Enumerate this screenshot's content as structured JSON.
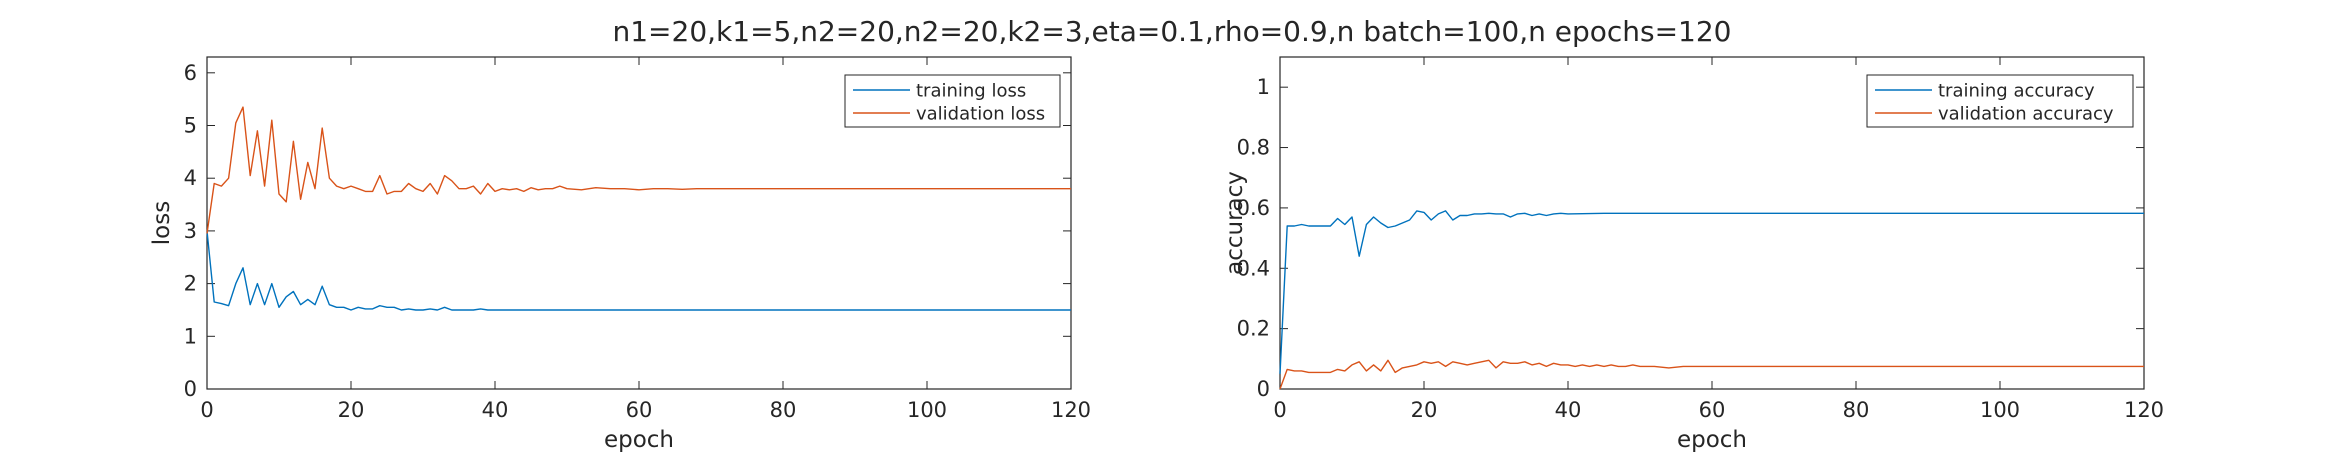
{
  "figure": {
    "suptitle": "n1=20,k1=5,n2=20,n2=20,k2=3,eta=0.1,rho=0.9,n batch=100,n epochs=120"
  },
  "colors": {
    "training": "#0072BD",
    "validation": "#D95319",
    "axes": "#262626"
  },
  "chart_data": [
    {
      "type": "line",
      "title": "",
      "xlabel": "epoch",
      "ylabel": "loss",
      "xlim": [
        0,
        120
      ],
      "ylim": [
        0,
        6.3
      ],
      "xticks": [
        0,
        20,
        40,
        60,
        80,
        100,
        120
      ],
      "yticks": [
        0,
        1,
        2,
        3,
        4,
        5,
        6
      ],
      "grid": false,
      "legend_position": "top-right",
      "series": [
        {
          "name": "training loss",
          "color": "#0072BD",
          "x": [
            0,
            1,
            2,
            3,
            4,
            5,
            6,
            7,
            8,
            9,
            10,
            11,
            12,
            13,
            14,
            15,
            16,
            17,
            18,
            19,
            20,
            21,
            22,
            23,
            24,
            25,
            26,
            27,
            28,
            29,
            30,
            31,
            32,
            33,
            34,
            35,
            36,
            37,
            38,
            39,
            40,
            45,
            50,
            60,
            70,
            80,
            90,
            100,
            110,
            120
          ],
          "y": [
            3.0,
            1.65,
            1.62,
            1.58,
            2.0,
            2.3,
            1.6,
            2.0,
            1.6,
            2.0,
            1.55,
            1.75,
            1.85,
            1.6,
            1.7,
            1.6,
            1.95,
            1.6,
            1.55,
            1.55,
            1.5,
            1.55,
            1.52,
            1.52,
            1.58,
            1.55,
            1.55,
            1.5,
            1.52,
            1.5,
            1.5,
            1.52,
            1.5,
            1.55,
            1.5,
            1.5,
            1.5,
            1.5,
            1.52,
            1.5,
            1.5,
            1.5,
            1.5,
            1.5,
            1.5,
            1.5,
            1.5,
            1.5,
            1.5,
            1.5
          ]
        },
        {
          "name": "validation loss",
          "color": "#D95319",
          "x": [
            0,
            1,
            2,
            3,
            4,
            5,
            6,
            7,
            8,
            9,
            10,
            11,
            12,
            13,
            14,
            15,
            16,
            17,
            18,
            19,
            20,
            21,
            22,
            23,
            24,
            25,
            26,
            27,
            28,
            29,
            30,
            31,
            32,
            33,
            34,
            35,
            36,
            37,
            38,
            39,
            40,
            41,
            42,
            43,
            44,
            45,
            46,
            47,
            48,
            49,
            50,
            52,
            54,
            56,
            58,
            60,
            62,
            64,
            66,
            68,
            70,
            75,
            80,
            90,
            100,
            110,
            120
          ],
          "y": [
            2.95,
            3.9,
            3.85,
            4.0,
            5.05,
            5.35,
            4.05,
            4.9,
            3.85,
            5.1,
            3.7,
            3.55,
            4.7,
            3.6,
            4.3,
            3.8,
            4.95,
            4.0,
            3.85,
            3.8,
            3.85,
            3.8,
            3.75,
            3.75,
            4.05,
            3.7,
            3.75,
            3.75,
            3.9,
            3.8,
            3.75,
            3.9,
            3.7,
            4.05,
            3.95,
            3.8,
            3.8,
            3.85,
            3.7,
            3.9,
            3.75,
            3.8,
            3.78,
            3.8,
            3.75,
            3.82,
            3.78,
            3.8,
            3.8,
            3.85,
            3.8,
            3.78,
            3.82,
            3.8,
            3.8,
            3.78,
            3.8,
            3.8,
            3.79,
            3.8,
            3.8,
            3.8,
            3.8,
            3.8,
            3.8,
            3.8,
            3.8
          ]
        }
      ]
    },
    {
      "type": "line",
      "title": "",
      "xlabel": "epoch",
      "ylabel": "accuracy",
      "xlim": [
        0,
        120
      ],
      "ylim": [
        0,
        1.1
      ],
      "xticks": [
        0,
        20,
        40,
        60,
        80,
        100,
        120
      ],
      "yticks": [
        0,
        0.2,
        0.4,
        0.6,
        0.8,
        1
      ],
      "grid": false,
      "legend_position": "top-right",
      "series": [
        {
          "name": "training accuracy",
          "color": "#0072BD",
          "x": [
            0,
            1,
            2,
            3,
            4,
            5,
            6,
            7,
            8,
            9,
            10,
            11,
            12,
            13,
            14,
            15,
            16,
            17,
            18,
            19,
            20,
            21,
            22,
            23,
            24,
            25,
            26,
            27,
            28,
            29,
            30,
            31,
            32,
            33,
            34,
            35,
            36,
            37,
            38,
            39,
            40,
            45,
            50,
            60,
            70,
            80,
            90,
            100,
            110,
            120
          ],
          "y": [
            0.05,
            0.54,
            0.54,
            0.545,
            0.54,
            0.54,
            0.54,
            0.54,
            0.565,
            0.545,
            0.57,
            0.44,
            0.545,
            0.57,
            0.55,
            0.535,
            0.54,
            0.55,
            0.56,
            0.59,
            0.585,
            0.56,
            0.58,
            0.59,
            0.56,
            0.575,
            0.575,
            0.58,
            0.58,
            0.582,
            0.58,
            0.58,
            0.57,
            0.58,
            0.582,
            0.575,
            0.58,
            0.575,
            0.58,
            0.582,
            0.58,
            0.582,
            0.582,
            0.582,
            0.582,
            0.582,
            0.582,
            0.582,
            0.582,
            0.582
          ]
        },
        {
          "name": "validation accuracy",
          "color": "#D95319",
          "x": [
            0,
            1,
            2,
            3,
            4,
            5,
            6,
            7,
            8,
            9,
            10,
            11,
            12,
            13,
            14,
            15,
            16,
            17,
            18,
            19,
            20,
            21,
            22,
            23,
            24,
            25,
            26,
            27,
            28,
            29,
            30,
            31,
            32,
            33,
            34,
            35,
            36,
            37,
            38,
            39,
            40,
            41,
            42,
            43,
            44,
            45,
            46,
            47,
            48,
            49,
            50,
            52,
            54,
            56,
            58,
            60,
            62,
            64,
            66,
            68,
            70,
            72,
            74,
            80,
            90,
            100,
            110,
            120
          ],
          "y": [
            0.0,
            0.065,
            0.06,
            0.06,
            0.055,
            0.055,
            0.055,
            0.055,
            0.065,
            0.06,
            0.08,
            0.09,
            0.06,
            0.08,
            0.06,
            0.095,
            0.055,
            0.07,
            0.075,
            0.08,
            0.09,
            0.085,
            0.09,
            0.075,
            0.09,
            0.085,
            0.08,
            0.085,
            0.09,
            0.095,
            0.07,
            0.09,
            0.085,
            0.085,
            0.09,
            0.08,
            0.085,
            0.075,
            0.085,
            0.08,
            0.08,
            0.075,
            0.08,
            0.075,
            0.08,
            0.075,
            0.08,
            0.075,
            0.075,
            0.08,
            0.075,
            0.075,
            0.07,
            0.075,
            0.075,
            0.075,
            0.075,
            0.075,
            0.075,
            0.075,
            0.075,
            0.075,
            0.075,
            0.075,
            0.075,
            0.075,
            0.075,
            0.075
          ]
        }
      ]
    }
  ]
}
